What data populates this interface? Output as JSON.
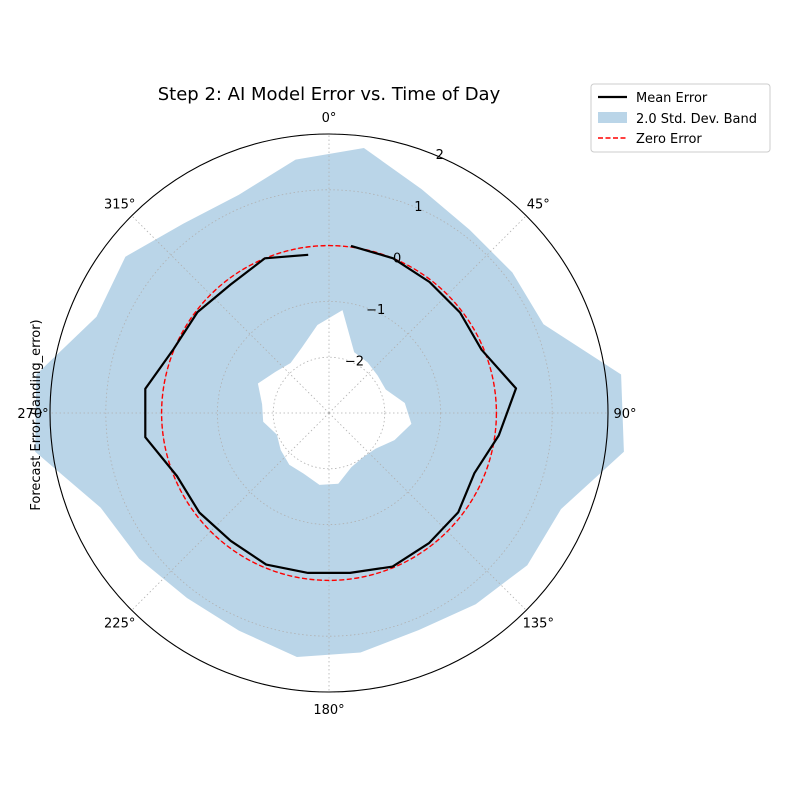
{
  "chart_data": {
    "type": "polar-line",
    "title": "Step 2: AI Model Error vs. Time of Day",
    "ylabel": "Forecast Error (landing_error)",
    "theta_unit": "degrees",
    "theta_direction": "clockwise",
    "theta_zero": "top",
    "r_lim": [
      -3.0,
      2.0
    ],
    "r_ticks": [
      -2,
      -1,
      0,
      1,
      2
    ],
    "r_tick_labels": [
      "−2",
      "−1",
      "0",
      "1",
      "2"
    ],
    "theta_ticks": [
      0,
      45,
      90,
      135,
      180,
      225,
      270,
      315
    ],
    "theta_tick_labels": [
      "0°",
      "45°",
      "90°",
      "135°",
      "180°",
      "225°",
      "270°",
      "315°"
    ],
    "grid": true,
    "legend_position": "upper-right outside",
    "theta": [
      7.5,
      22.5,
      37.5,
      52.5,
      67.5,
      82.5,
      97.5,
      112.5,
      127.5,
      142.5,
      157.5,
      172.5,
      187.5,
      202.5,
      217.5,
      232.5,
      247.5,
      262.5,
      277.5,
      292.5,
      307.5,
      322.5,
      337.5,
      352.5
    ],
    "series": [
      {
        "name": "Mean Error",
        "kind": "line",
        "color": "#000000",
        "r": [
          0.02,
          0.0,
          -0.04,
          -0.04,
          -0.04,
          0.38,
          0.07,
          -0.18,
          -0.08,
          -0.06,
          -0.02,
          -0.11,
          -0.11,
          -0.06,
          -0.11,
          -0.07,
          -0.05,
          0.32,
          0.32,
          0.01,
          -0.03,
          -0.1,
          0.0,
          -0.14
        ]
      },
      {
        "name": "2.0 Std. Dev. Band",
        "kind": "band",
        "color": "#bad5e8",
        "lower": [
          -1.14,
          -1.82,
          -1.86,
          -1.9,
          -1.9,
          -1.63,
          -1.51,
          -1.73,
          -1.95,
          -2.0,
          -1.95,
          -1.72,
          -1.7,
          -1.82,
          -1.83,
          -1.91,
          -1.99,
          -1.81,
          -1.79,
          -1.62,
          -1.79,
          -1.87,
          -1.73,
          -1.41
        ],
        "upper": [
          1.79,
          1.34,
          1.14,
          1.14,
          1.16,
          2.28,
          2.33,
          1.5,
          1.48,
          1.32,
          1.21,
          1.33,
          1.41,
          1.22,
          1.18,
          1.29,
          1.43,
          2.31,
          2.29,
          1.51,
          1.6,
          1.28,
          1.23,
          1.58
        ]
      },
      {
        "name": "Zero Error",
        "kind": "reference-circle",
        "color": "#ff0000",
        "value": 0
      }
    ]
  }
}
